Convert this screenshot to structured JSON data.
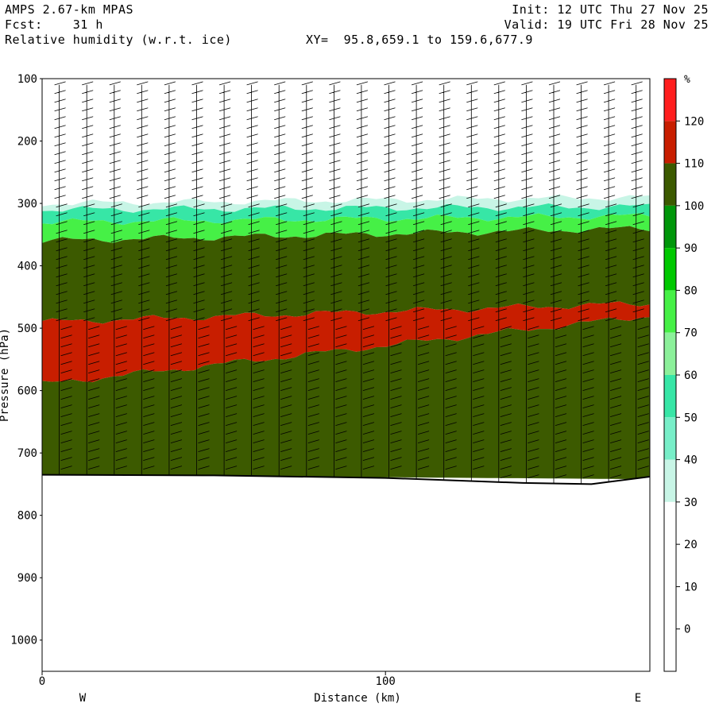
{
  "header": {
    "model": "AMPS 2.67-km MPAS",
    "forecast": "Fcst:    31 h",
    "field": "Relative humidity (w.r.t. ice)",
    "xy": "XY=  95.8,659.1 to 159.6,677.9",
    "init": "Init: 12 UTC Thu 27 Nov 25",
    "valid": "Valid: 19 UTC Fri 28 Nov 25"
  },
  "chart_data": {
    "type": "heatmap",
    "title": "Relative humidity (w.r.t. ice)",
    "xlabel": "Distance (km)",
    "ylabel": "Pressure (hPa)",
    "xlim": [
      0,
      177
    ],
    "ylim": [
      1050,
      100
    ],
    "x_ticks": [
      0,
      100
    ],
    "y_ticks": [
      100,
      200,
      300,
      400,
      500,
      600,
      700,
      800,
      900,
      1000
    ],
    "x_end_labels": {
      "left": "W",
      "right": "E"
    },
    "colorbar": {
      "unit": "%",
      "levels": [
        0,
        10,
        20,
        30,
        40,
        50,
        60,
        70,
        80,
        90,
        100,
        110,
        120
      ],
      "colors": [
        "#ffffff",
        "#ffffff",
        "#ffffff",
        "#ffffff",
        "#c8f5e6",
        "#78eec8",
        "#37e6a6",
        "#8cf09a",
        "#46f046",
        "#00c800",
        "#00960a",
        "#3c5a00",
        "#c81e00",
        "#ff1e1e"
      ]
    },
    "layers": [
      {
        "name": "rh_0_30",
        "value": 20,
        "top_hPa": [
          100,
          100
        ],
        "bottom_hPa": [
          300,
          290
        ]
      },
      {
        "name": "rh_30_40",
        "value": 35,
        "top_hPa": [
          300,
          290
        ],
        "bottom_hPa": [
          310,
          305
        ]
      },
      {
        "name": "rh_40_60",
        "value": 50,
        "top_hPa": [
          310,
          305
        ],
        "bottom_hPa": [
          330,
          320
        ]
      },
      {
        "name": "rh_60_90",
        "value": 75,
        "top_hPa": [
          330,
          320
        ],
        "bottom_hPa": [
          360,
          340
        ]
      },
      {
        "name": "rh_90_110",
        "value": 100,
        "top_hPa": [
          360,
          340
        ],
        "bottom_hPa": [
          490,
          460
        ]
      },
      {
        "name": "rh_110_120",
        "value": 115,
        "top_hPa": [
          490,
          460
        ],
        "bottom_hPa": [
          590,
          480
        ]
      },
      {
        "name": "rh_100_110",
        "value": 105,
        "top_hPa": [
          590,
          480
        ],
        "bottom_hPa": [
          735,
          742
        ]
      }
    ],
    "ground_pressure_hPa": [
      {
        "x": 0,
        "p": 735
      },
      {
        "x": 50,
        "p": 736
      },
      {
        "x": 100,
        "p": 740
      },
      {
        "x": 140,
        "p": 748
      },
      {
        "x": 160,
        "p": 750
      },
      {
        "x": 177,
        "p": 738
      }
    ],
    "wind_barb_columns_x_km": [
      5,
      13,
      21,
      29,
      37,
      45,
      53,
      61,
      69,
      77,
      85,
      93,
      101,
      109,
      117,
      125,
      133,
      141,
      149,
      157,
      165,
      173
    ]
  }
}
